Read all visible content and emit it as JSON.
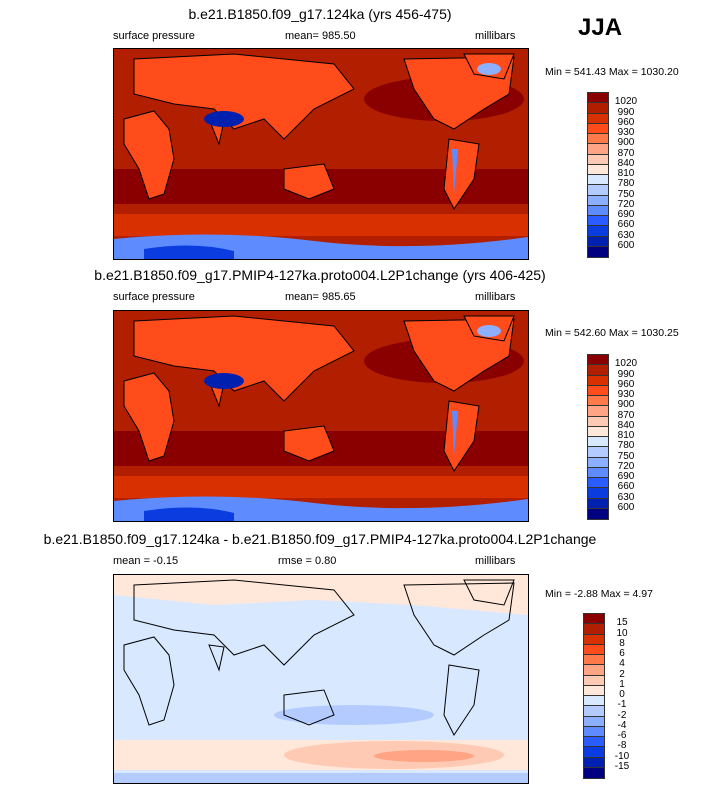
{
  "season_label": "JJA",
  "colors": {
    "pressure_scale": [
      "#8a0000",
      "#b21f00",
      "#d93000",
      "#ff4c1a",
      "#ff7a48",
      "#ffa585",
      "#ffcab4",
      "#ffe8da",
      "#d8e8ff",
      "#b3cbff",
      "#8cafff",
      "#5e8cff",
      "#2a5cff",
      "#0a3ce0",
      "#0020b0",
      "#000080"
    ]
  },
  "panels": [
    {
      "title": "b.e21.B1850.f09_g17.124ka (yrs 456-475)",
      "left_label": "surface pressure",
      "center_label": "mean= 985.50",
      "right_label": "millibars",
      "minmax": "Min = 541.43 Max = 1030.20",
      "colorbar_labels": [
        "1020",
        "990",
        "960",
        "930",
        "900",
        "870",
        "840",
        "810",
        "780",
        "750",
        "720",
        "690",
        "660",
        "630",
        "600"
      ]
    },
    {
      "title": "b.e21.B1850.f09_g17.PMIP4-127ka.proto004.L2P1change (yrs 406-425)",
      "left_label": "surface pressure",
      "center_label": "mean= 985.65",
      "right_label": "millibars",
      "minmax": "Min = 542.60 Max = 1030.25",
      "colorbar_labels": [
        "1020",
        "990",
        "960",
        "930",
        "900",
        "870",
        "840",
        "810",
        "780",
        "750",
        "720",
        "690",
        "660",
        "630",
        "600"
      ]
    },
    {
      "title": "b.e21.B1850.f09_g17.124ka - b.e21.B1850.f09_g17.PMIP4-127ka.proto004.L2P1change",
      "left_label": "mean =  -0.15",
      "center_label": "rmse =   0.80",
      "right_label": "millibars",
      "minmax": "Min =  -2.88 Max =   4.97",
      "colorbar_labels": [
        "15",
        "10",
        "8",
        "6",
        "4",
        "2",
        "1",
        "0",
        "-1",
        "-2",
        "-4",
        "-6",
        "-8",
        "-10",
        "-15"
      ]
    }
  ]
}
